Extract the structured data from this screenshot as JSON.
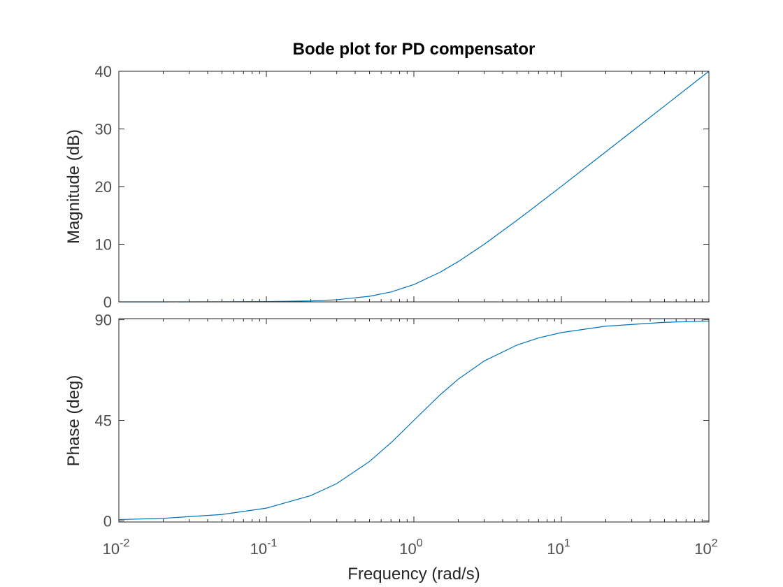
{
  "chart_data": {
    "type": "line",
    "title": "Bode plot for PD compensator",
    "xlabel": "Frequency  (rad/s)",
    "xscale": "log",
    "xlim": [
      0.01,
      100
    ],
    "x_ticks": [
      {
        "base": "10",
        "exp": "-2",
        "value": 0.01
      },
      {
        "base": "10",
        "exp": "-1",
        "value": 0.1
      },
      {
        "base": "10",
        "exp": "0",
        "value": 1
      },
      {
        "base": "10",
        "exp": "1",
        "value": 10
      },
      {
        "base": "10",
        "exp": "2",
        "value": 100
      }
    ],
    "grid": false,
    "line_color": "#0072bd",
    "panels": [
      {
        "name": "magnitude",
        "ylabel": "Magnitude (dB)",
        "ylim": [
          0,
          40
        ],
        "y_ticks": [
          "0",
          "10",
          "20",
          "30",
          "40"
        ],
        "series": [
          {
            "x": [
              0.01,
              0.02,
              0.05,
              0.1,
              0.2,
              0.3,
              0.5,
              0.7,
              1,
              1.5,
              2,
              3,
              5,
              7,
              10,
              20,
              50,
              100
            ],
            "y": [
              0.0,
              0.002,
              0.011,
              0.043,
              0.17,
              0.37,
              0.97,
              1.72,
              3.01,
              5.12,
              6.99,
              10.0,
              14.15,
              17.0,
              20.04,
              26.03,
              33.98,
              40.0
            ]
          }
        ]
      },
      {
        "name": "phase",
        "ylabel": "Phase (deg)",
        "ylim": [
          -0.5,
          90.5
        ],
        "y_ticks": [
          "0",
          "45",
          "90"
        ],
        "series": [
          {
            "x": [
              0.01,
              0.02,
              0.05,
              0.1,
              0.2,
              0.3,
              0.5,
              0.7,
              1,
              1.5,
              2,
              3,
              5,
              7,
              10,
              20,
              50,
              100
            ],
            "y": [
              0.57,
              1.15,
              2.86,
              5.71,
              11.31,
              16.7,
              26.57,
              34.99,
              45.0,
              56.31,
              63.43,
              71.57,
              78.69,
              81.87,
              84.29,
              87.14,
              88.85,
              89.43
            ]
          }
        ]
      }
    ]
  }
}
